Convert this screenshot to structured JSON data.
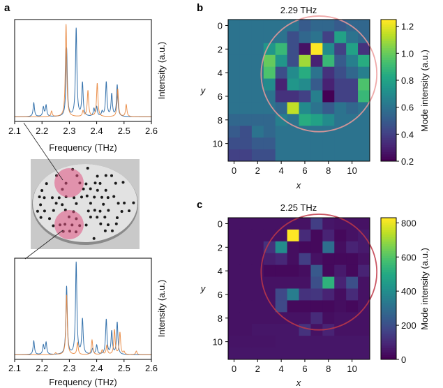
{
  "panel_labels": {
    "a": "a",
    "b": "b",
    "c": "c"
  },
  "photo": {
    "description_icon": "sample-disc-photo-icon"
  },
  "chart_data": [
    {
      "id": "spectrum-top",
      "type": "line",
      "xlabel": "Frequency (THz)",
      "ylabel": "Intensity (a.u.)",
      "xlim": [
        2.1,
        2.6
      ],
      "ylim": [
        -0.05,
        1.05
      ],
      "xticks": [
        "2.1",
        "2.2",
        "2.3",
        "2.4",
        "2.5",
        "2.6"
      ],
      "peak_width": 0.003,
      "series": [
        {
          "name": "blue",
          "color": "#2a6aa8",
          "peaks": [
            [
              2.17,
              0.15
            ],
            [
              2.205,
              0.1
            ],
            [
              2.215,
              0.12
            ],
            [
              2.29,
              0.74
            ],
            [
              2.325,
              0.95
            ],
            [
              2.348,
              0.36
            ],
            [
              2.39,
              0.08
            ],
            [
              2.4,
              0.1
            ],
            [
              2.42,
              0.05
            ],
            [
              2.435,
              0.37
            ],
            [
              2.455,
              0.24
            ],
            [
              2.475,
              0.34
            ]
          ]
        },
        {
          "name": "orange",
          "color": "#e8843a",
          "peaks": [
            [
              2.235,
              0.06
            ],
            [
              2.288,
              1.0
            ],
            [
              2.35,
              0.06
            ],
            [
              2.368,
              0.28
            ],
            [
              2.402,
              0.36
            ],
            [
              2.477,
              0.3
            ],
            [
              2.508,
              0.13
            ]
          ]
        }
      ]
    },
    {
      "id": "spectrum-bottom",
      "type": "line",
      "xlabel": "Frequency (THz)",
      "ylabel": "Intensity (a.u.)",
      "xlim": [
        2.1,
        2.6
      ],
      "ylim": [
        -0.05,
        1.05
      ],
      "xticks": [
        "2.1",
        "2.2",
        "2.3",
        "2.4",
        "2.5",
        "2.6"
      ],
      "peak_width": 0.003,
      "series": [
        {
          "name": "blue",
          "color": "#2a6aa8",
          "peaks": [
            [
              2.17,
              0.15
            ],
            [
              2.205,
              0.1
            ],
            [
              2.215,
              0.13
            ],
            [
              2.29,
              0.74
            ],
            [
              2.325,
              1.0
            ],
            [
              2.348,
              0.38
            ],
            [
              2.385,
              0.06
            ],
            [
              2.4,
              0.1
            ],
            [
              2.435,
              0.38
            ],
            [
              2.455,
              0.25
            ],
            [
              2.475,
              0.35
            ]
          ]
        },
        {
          "name": "orange",
          "color": "#e8843a",
          "peaks": [
            [
              2.25,
              0.02
            ],
            [
              2.29,
              0.65
            ],
            [
              2.33,
              0.13
            ],
            [
              2.383,
              0.16
            ],
            [
              2.42,
              0.05
            ],
            [
              2.437,
              0.1
            ],
            [
              2.465,
              0.27
            ],
            [
              2.485,
              0.24
            ],
            [
              2.5,
              0.03
            ],
            [
              2.545,
              0.04
            ]
          ]
        }
      ]
    },
    {
      "id": "heatmap-b",
      "type": "heatmap",
      "title": "2.29 THz",
      "xlabel": "x",
      "ylabel": "y",
      "xticks": [
        "0",
        "2",
        "4",
        "6",
        "8",
        "10"
      ],
      "yticks": [
        "0",
        "2",
        "4",
        "6",
        "8",
        "10"
      ],
      "colorbar_label": "Mode intensity (a.u.)",
      "colorbar_ticks": [
        "0.2",
        "0.4",
        "0.6",
        "0.8",
        "1.0",
        "1.2"
      ],
      "vmin": 0.2,
      "vmax": 1.25,
      "circle": {
        "cx": 7.2,
        "cy": 4.1,
        "r": 4.9,
        "color": "#ec9a9a"
      },
      "values": [
        [
          0.6,
          0.6,
          0.6,
          0.6,
          0.6,
          0.6,
          0.5,
          0.55,
          0.55,
          0.5,
          0.55,
          0.55
        ],
        [
          0.6,
          0.6,
          0.6,
          0.6,
          0.6,
          0.45,
          0.55,
          0.6,
          0.4,
          0.8,
          0.6,
          0.55
        ],
        [
          0.6,
          0.6,
          0.6,
          0.75,
          0.9,
          0.45,
          0.25,
          1.25,
          0.7,
          0.4,
          0.8,
          0.35
        ],
        [
          0.6,
          0.6,
          0.6,
          1.0,
          0.75,
          0.45,
          1.1,
          0.3,
          0.9,
          0.5,
          0.65,
          0.85
        ],
        [
          0.6,
          0.6,
          0.6,
          0.95,
          0.45,
          0.7,
          0.85,
          0.6,
          0.35,
          0.45,
          0.55,
          0.65
        ],
        [
          0.6,
          0.6,
          0.6,
          0.7,
          0.3,
          0.75,
          0.7,
          0.5,
          0.3,
          0.4,
          0.4,
          0.95
        ],
        [
          0.6,
          0.6,
          0.6,
          0.6,
          0.35,
          0.35,
          0.4,
          0.65,
          0.2,
          0.4,
          0.4,
          0.9
        ],
        [
          0.6,
          0.6,
          0.6,
          0.6,
          0.55,
          1.15,
          0.7,
          0.6,
          0.5,
          0.6,
          0.55,
          0.6
        ],
        [
          0.55,
          0.55,
          0.55,
          0.55,
          0.65,
          0.6,
          0.85,
          0.8,
          0.7,
          0.6,
          0.6,
          0.6
        ],
        [
          0.5,
          0.45,
          0.6,
          0.55,
          0.6,
          0.6,
          0.6,
          0.6,
          0.6,
          0.6,
          0.6,
          0.6
        ],
        [
          0.45,
          0.45,
          0.5,
          0.5,
          0.6,
          0.6,
          0.6,
          0.6,
          0.6,
          0.6,
          0.6,
          0.6
        ],
        [
          0.4,
          0.4,
          0.45,
          0.45,
          0.6,
          0.6,
          0.6,
          0.6,
          0.6,
          0.6,
          0.6,
          0.6
        ]
      ]
    },
    {
      "id": "heatmap-c",
      "type": "heatmap",
      "title": "2.25 THz",
      "xlabel": "x",
      "ylabel": "y",
      "xticks": [
        "0",
        "2",
        "4",
        "6",
        "8",
        "10"
      ],
      "yticks": [
        "0",
        "2",
        "4",
        "6",
        "8",
        "10"
      ],
      "colorbar_label": "Mode intensity (a.u.)",
      "colorbar_ticks": [
        "0",
        "200",
        "400",
        "600",
        "800"
      ],
      "vmin": 0,
      "vmax": 830,
      "circle": {
        "cx": 7.2,
        "cy": 4.1,
        "r": 4.9,
        "color": "#c03848"
      },
      "values": [
        [
          40,
          40,
          40,
          40,
          40,
          40,
          40,
          150,
          50,
          40,
          40,
          40
        ],
        [
          40,
          40,
          40,
          40,
          40,
          830,
          100,
          20,
          80,
          20,
          40,
          60
        ],
        [
          40,
          40,
          40,
          120,
          400,
          30,
          20,
          20,
          300,
          30,
          80,
          60
        ],
        [
          40,
          40,
          40,
          70,
          90,
          30,
          150,
          40,
          20,
          20,
          20,
          40
        ],
        [
          40,
          40,
          40,
          20,
          20,
          20,
          30,
          230,
          20,
          60,
          20,
          80
        ],
        [
          40,
          40,
          40,
          40,
          40,
          40,
          40,
          200,
          530,
          80,
          200,
          40
        ],
        [
          40,
          40,
          40,
          40,
          180,
          350,
          120,
          130,
          80,
          30,
          100,
          40
        ],
        [
          40,
          40,
          40,
          40,
          180,
          20,
          20,
          20,
          20,
          30,
          20,
          40
        ],
        [
          40,
          40,
          40,
          40,
          40,
          40,
          40,
          100,
          30,
          40,
          40,
          40
        ],
        [
          40,
          40,
          50,
          50,
          50,
          50,
          120,
          40,
          80,
          40,
          40,
          40
        ],
        [
          45,
          45,
          45,
          45,
          50,
          50,
          50,
          50,
          50,
          50,
          50,
          50
        ],
        [
          50,
          50,
          50,
          50,
          50,
          50,
          50,
          50,
          50,
          50,
          50,
          50
        ]
      ]
    }
  ]
}
